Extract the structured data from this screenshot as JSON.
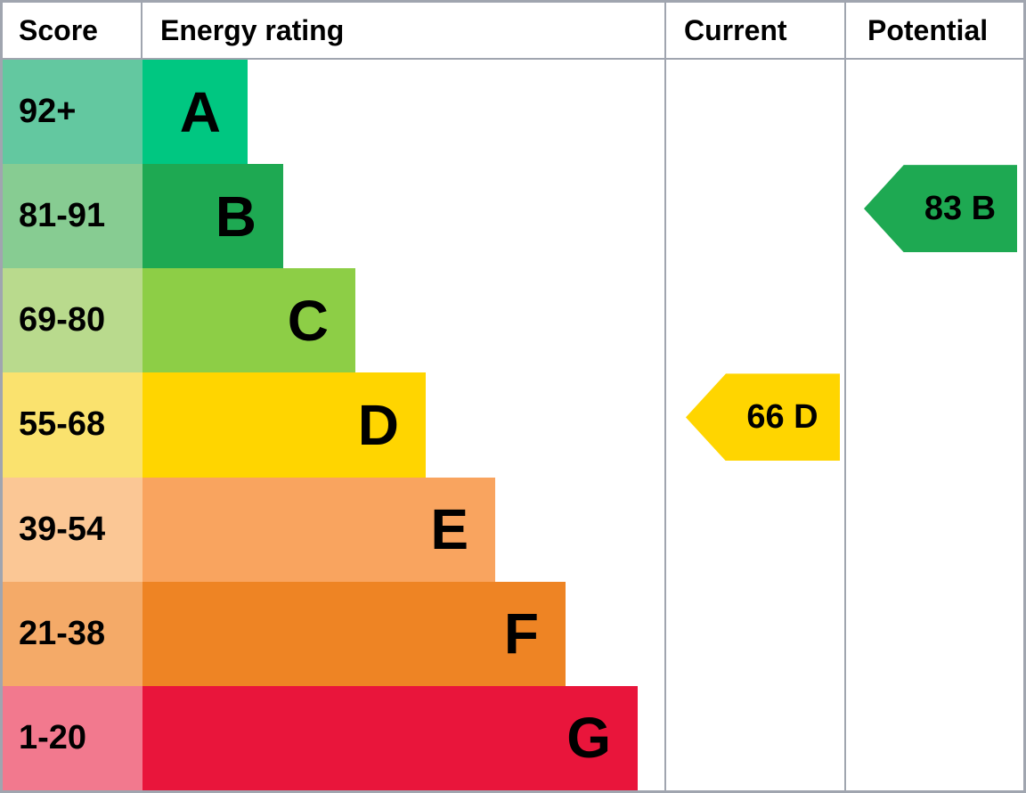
{
  "header": {
    "score": "Score",
    "energy_rating": "Energy rating",
    "current": "Current",
    "potential": "Potential"
  },
  "bands": [
    {
      "letter": "A",
      "score_range": "92+",
      "bar_color": "#00c781",
      "score_color": "#63c8a0"
    },
    {
      "letter": "B",
      "score_range": "81-91",
      "bar_color": "#1ea952",
      "score_color": "#87cc92"
    },
    {
      "letter": "C",
      "score_range": "69-80",
      "bar_color": "#8dce46",
      "score_color": "#b9da8d"
    },
    {
      "letter": "D",
      "score_range": "55-68",
      "bar_color": "#ffd500",
      "score_color": "#fae26e"
    },
    {
      "letter": "E",
      "score_range": "39-54",
      "bar_color": "#f9a45f",
      "score_color": "#fbc795"
    },
    {
      "letter": "F",
      "score_range": "21-38",
      "bar_color": "#ee8424",
      "score_color": "#f4aa68"
    },
    {
      "letter": "G",
      "score_range": "1-20",
      "bar_color": "#e9153b",
      "score_color": "#f2798e"
    }
  ],
  "markers": {
    "current": {
      "label": "66 D",
      "value": 66,
      "band": "D",
      "band_index": 3,
      "color": "#ffd500"
    },
    "potential": {
      "label": "83 B",
      "value": 83,
      "band": "B",
      "band_index": 1,
      "color": "#1ea952"
    }
  },
  "chart_data": {
    "type": "bar",
    "title": "Energy rating (EPC band chart)",
    "columns": [
      "Score",
      "Energy rating",
      "Current",
      "Potential"
    ],
    "categories": [
      "A",
      "B",
      "C",
      "D",
      "E",
      "F",
      "G"
    ],
    "score_ranges": [
      "92+",
      "81-91",
      "69-80",
      "55-68",
      "39-54",
      "21-38",
      "1-20"
    ],
    "bar_colors": [
      "#00c781",
      "#1ea952",
      "#8dce46",
      "#ffd500",
      "#f9a45f",
      "#ee8424",
      "#e9153b"
    ],
    "current": {
      "score": 66,
      "band": "D"
    },
    "potential": {
      "score": 83,
      "band": "B"
    }
  }
}
